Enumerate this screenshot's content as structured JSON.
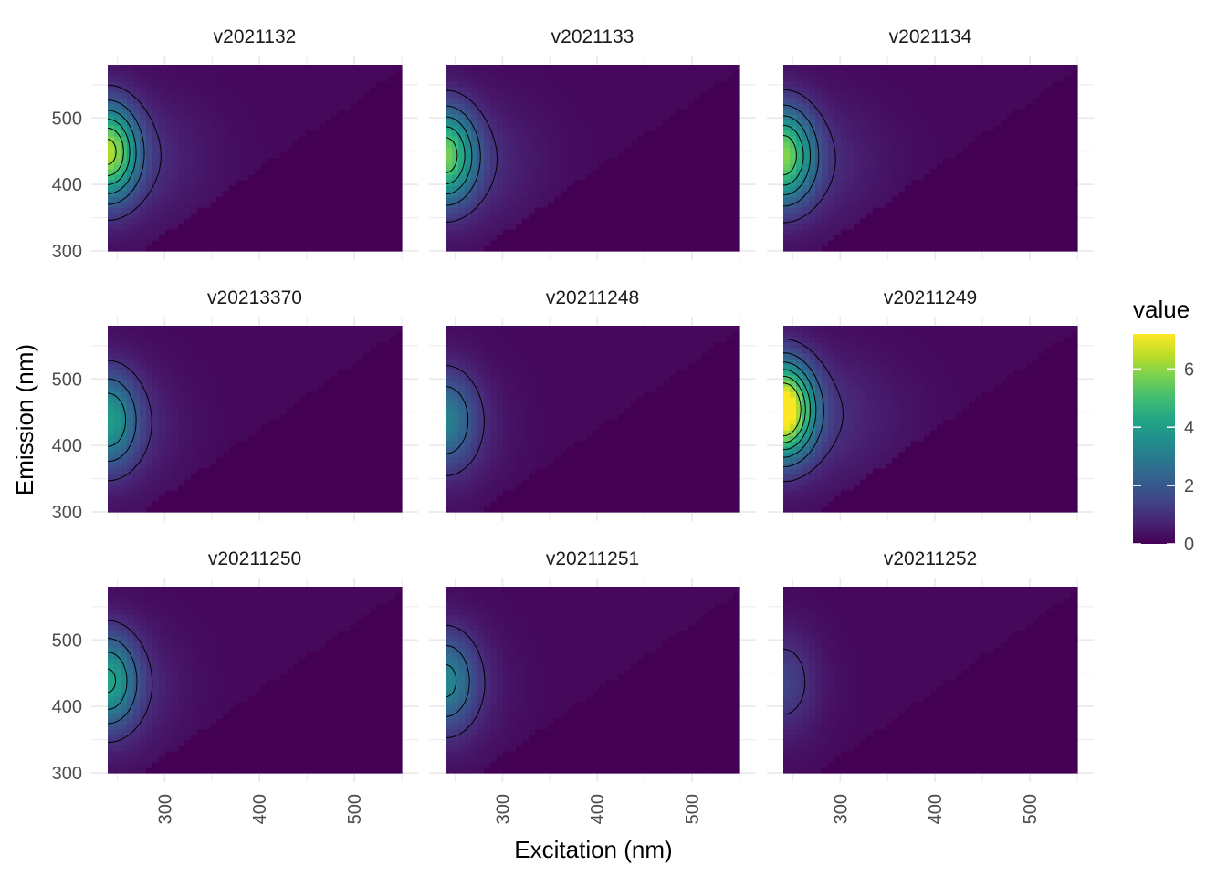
{
  "chart_data": {
    "type": "heatmap",
    "xlabel": "Excitation (nm)",
    "ylabel": "Emission (nm)",
    "xlim": [
      240,
      550
    ],
    "ylim": [
      300,
      580
    ],
    "xticks": [
      300,
      400,
      500
    ],
    "yticks": [
      300,
      400,
      500
    ],
    "grid": true,
    "legend": {
      "title": "value",
      "position": "right",
      "range": [
        0,
        7.2
      ],
      "ticks": [
        0,
        2,
        4,
        6
      ],
      "colormap": "viridis",
      "colors": [
        "#440154",
        "#3b528b",
        "#21918c",
        "#5ec962",
        "#fde725"
      ]
    },
    "panels": [
      {
        "title": "v2021132",
        "peak": 5.3,
        "peak_ex": 240,
        "peak_em": 450,
        "tail_ex": 355,
        "tail_level": 1.0
      },
      {
        "title": "v2021133",
        "peak": 4.6,
        "peak_ex": 240,
        "peak_em": 445,
        "tail_ex": 345,
        "tail_level": 1.0
      },
      {
        "title": "v2021134",
        "peak": 4.8,
        "peak_ex": 240,
        "peak_em": 445,
        "tail_ex": 350,
        "tail_level": 1.0
      },
      {
        "title": "v20213370",
        "peak": 3.0,
        "peak_ex": 240,
        "peak_em": 440,
        "tail_ex": 310,
        "tail_level": 0.9
      },
      {
        "title": "v20211248",
        "peak": 2.2,
        "peak_ex": 240,
        "peak_em": 440,
        "tail_ex": 290,
        "tail_level": 0.8
      },
      {
        "title": "v20211249",
        "peak": 7.0,
        "peak_ex": 240,
        "peak_em": 455,
        "tail_ex": 380,
        "tail_level": 1.1
      },
      {
        "title": "v20211250",
        "peak": 3.2,
        "peak_ex": 240,
        "peak_em": 440,
        "tail_ex": 310,
        "tail_level": 0.9
      },
      {
        "title": "v20211251",
        "peak": 2.4,
        "peak_ex": 240,
        "peak_em": 440,
        "tail_ex": 290,
        "tail_level": 0.8
      },
      {
        "title": "v20211252",
        "peak": 0.8,
        "peak_ex": 240,
        "peak_em": 440,
        "tail_ex": 270,
        "tail_level": 0.5
      }
    ]
  }
}
